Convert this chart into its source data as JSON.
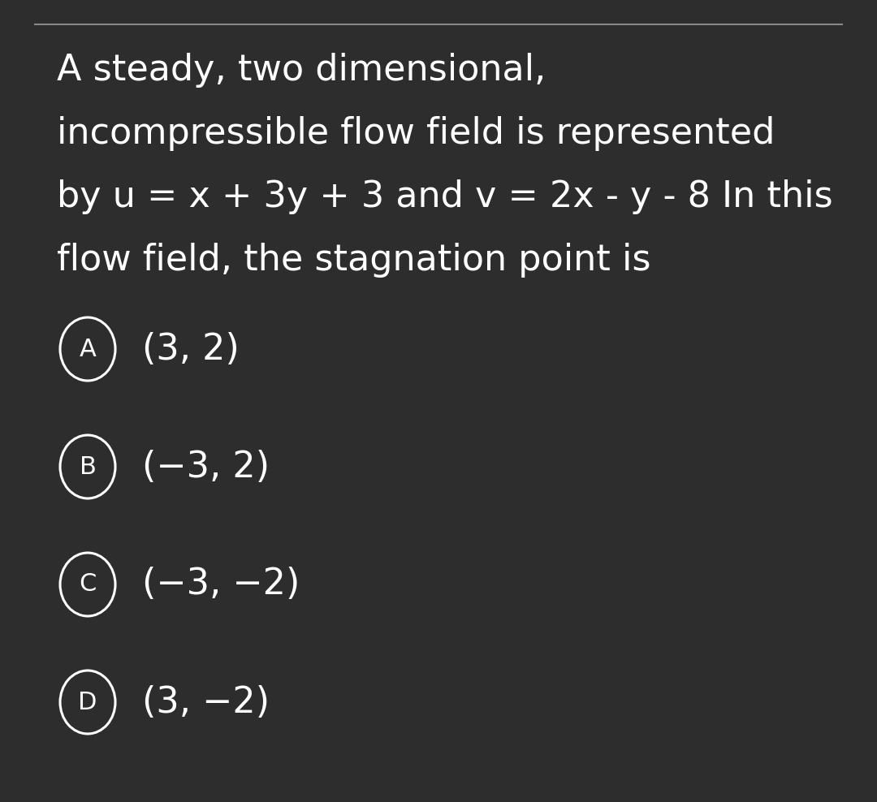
{
  "background_color": "#2d2d2d",
  "top_line_color": "#888888",
  "text_color": "#ffffff",
  "question_text": [
    "A steady, two dimensional,",
    "incompressible flow field is represented",
    "by u = x + 3y + 3 and v = 2x - y - 8 In this",
    "flow field, the stagnation point is"
  ],
  "options": [
    {
      "label": "A",
      "text": "(3, 2)"
    },
    {
      "label": "B",
      "text": "(−3, 2)"
    },
    {
      "label": "C",
      "text": "(−3, −2)"
    },
    {
      "label": "D",
      "text": "(3, −2)"
    }
  ],
  "question_fontsize": 32,
  "option_fontsize": 32,
  "label_fontsize": 22
}
